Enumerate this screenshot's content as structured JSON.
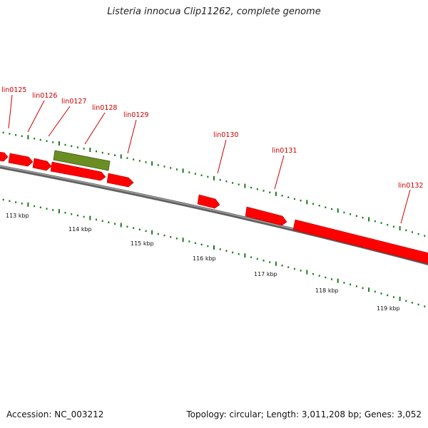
{
  "title": "Listeria innocua Clip11262, complete genome",
  "accession": "Accession: NC_003212",
  "summary": "Topology: circular; Length: 3,011,208 bp; Genes: 3,052",
  "colors": {
    "backbone": "#808080",
    "cds": "#ff0000",
    "other_gene": "#6b8e23",
    "tick": "#1a7a1a",
    "label": "#cc0000"
  },
  "gene_labels": [
    "lin0125",
    "lin0126",
    "lin0127",
    "lin0128",
    "lin0129",
    "lin0130",
    "lin0131",
    "lin0132"
  ],
  "scale_labels": [
    "113 kbp",
    "114 kbp",
    "115 kbp",
    "116 kbp",
    "117 kbp",
    "118 kbp",
    "119 kbp"
  ]
}
